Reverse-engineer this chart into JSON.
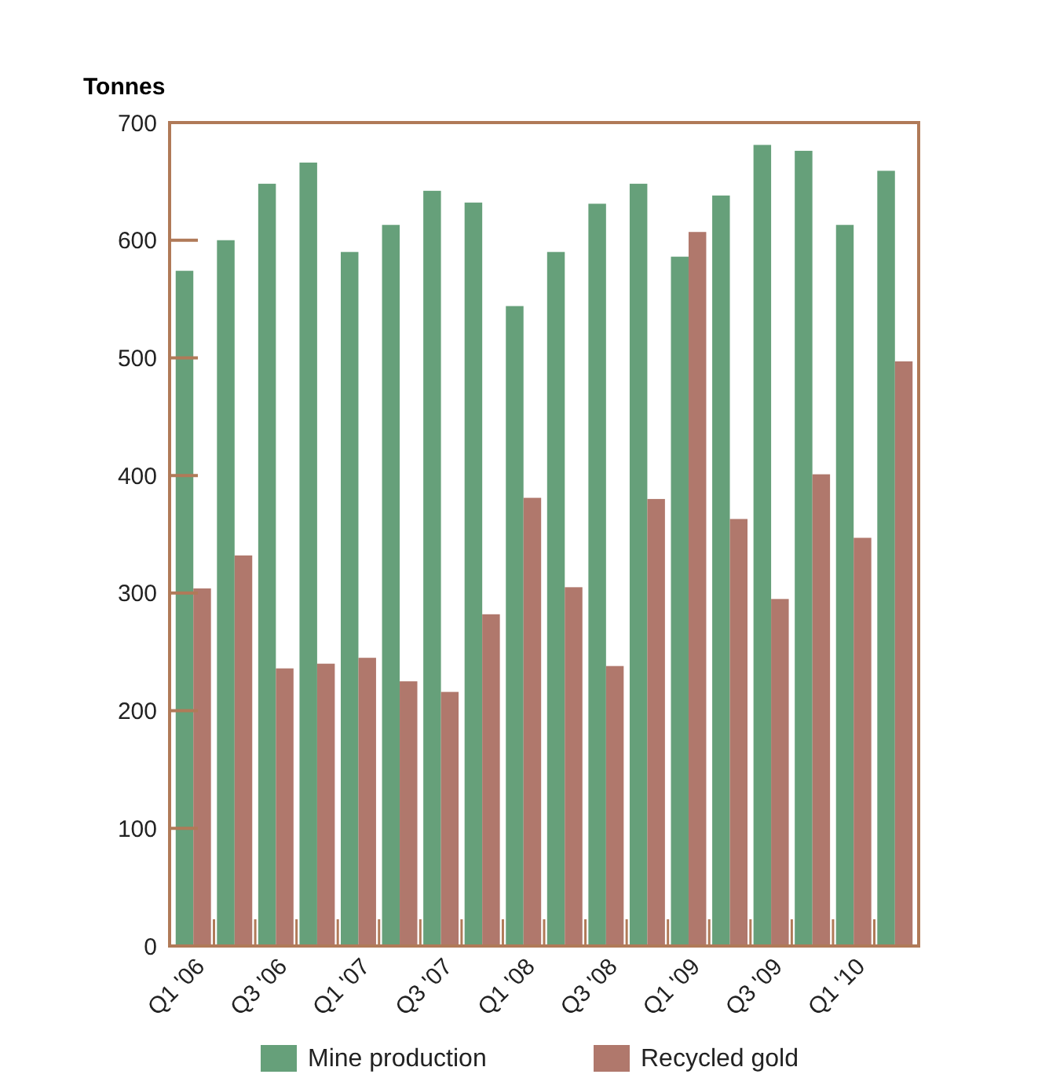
{
  "chart_data": {
    "type": "bar",
    "ylabel": "Tonnes",
    "categories": [
      "Q1 '06",
      null,
      "Q3 '06",
      null,
      "Q1 '07",
      null,
      "Q3 '07",
      null,
      "Q1 '08",
      null,
      "Q3 '08",
      null,
      "Q1 '09",
      null,
      "Q3 '09",
      null,
      "Q1 '10",
      null
    ],
    "series": [
      {
        "name": "Mine production",
        "color": "#66a07a",
        "values": [
          574,
          600,
          648,
          666,
          590,
          613,
          642,
          632,
          544,
          590,
          631,
          648,
          586,
          638,
          681,
          676,
          613,
          659
        ]
      },
      {
        "name": "Recycled gold",
        "color": "#b0786c",
        "values": [
          304,
          332,
          236,
          240,
          245,
          225,
          216,
          282,
          381,
          305,
          238,
          380,
          607,
          363,
          295,
          401,
          347,
          497
        ]
      }
    ],
    "ylim": [
      0,
      700
    ],
    "yticks": [
      0,
      100,
      200,
      300,
      400,
      500,
      600,
      700
    ],
    "grid": false,
    "legend": "bottom"
  }
}
